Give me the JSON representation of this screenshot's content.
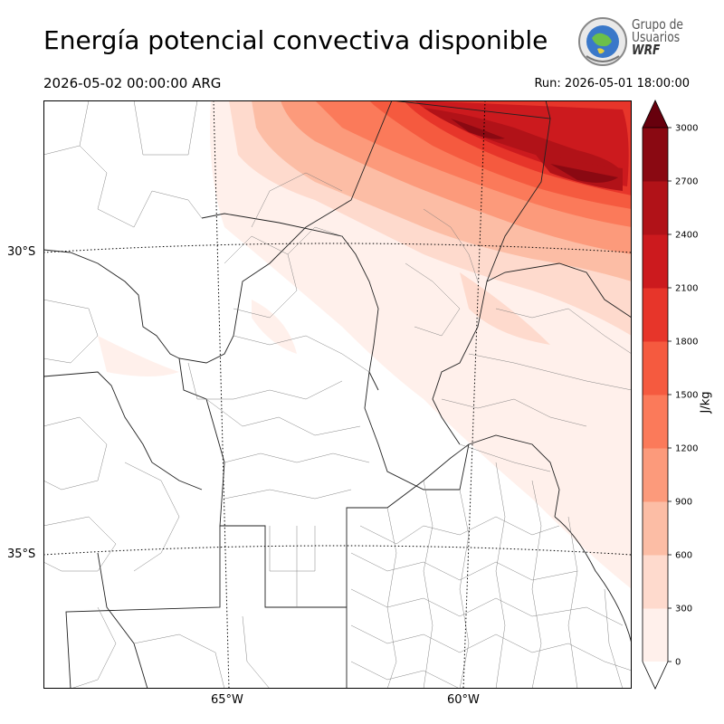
{
  "header": {
    "title": "Energía potencial convectiva disponible",
    "valid_time": "2026-05-02 00:00:00 ARG",
    "run_time": "Run: 2026-05-01 18:00:00"
  },
  "logo": {
    "line1": "Grupo de",
    "line2": "Usuarios",
    "line3": "WRF"
  },
  "axes": {
    "lat_labels": [
      "30°S",
      "35°S"
    ],
    "lon_labels": [
      "65°W",
      "60°W"
    ]
  },
  "colorbar": {
    "unit": "J/kg",
    "levels": [
      "0",
      "300",
      "600",
      "900",
      "1200",
      "1500",
      "1800",
      "2100",
      "2400",
      "2700",
      "3000"
    ],
    "colors": [
      "#fff0eb",
      "#fedacd",
      "#fcbda5",
      "#fc9a7b",
      "#fb7a5a",
      "#f55a3f",
      "#e7352a",
      "#cc1a1e",
      "#b11218",
      "#8a0912",
      "#67000d"
    ],
    "extend": "max"
  }
}
